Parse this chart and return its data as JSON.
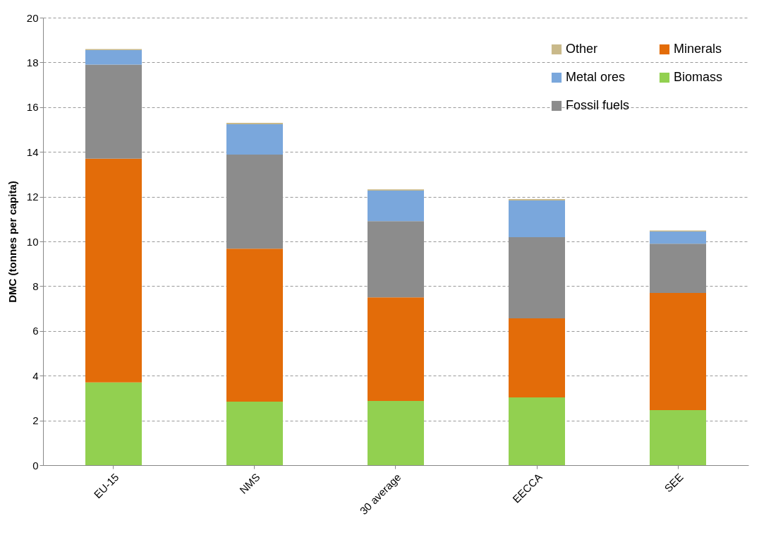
{
  "chart_data": {
    "type": "bar",
    "stacked": true,
    "ylabel": "DMC (tonnes per capita)",
    "categories": [
      "EU-15",
      "NMS",
      "30 average",
      "EECCA",
      "SEE"
    ],
    "series": [
      {
        "name": "Biomass",
        "color": "#92d050",
        "values": [
          3.7,
          2.84,
          2.87,
          3.03,
          2.46
        ]
      },
      {
        "name": "Minerals",
        "color": "#e36c09",
        "values": [
          10.0,
          6.84,
          4.63,
          3.53,
          5.24
        ]
      },
      {
        "name": "Fossil fuels",
        "color": "#8c8c8c",
        "values": [
          4.2,
          4.2,
          3.41,
          3.63,
          2.2
        ]
      },
      {
        "name": "Metal ores",
        "color": "#7aa7dc",
        "values": [
          0.65,
          1.36,
          1.36,
          1.64,
          0.54
        ]
      },
      {
        "name": "Other",
        "color": "#c9b98a",
        "values": [
          0.05,
          0.06,
          0.06,
          0.06,
          0.05
        ]
      }
    ],
    "ylim": [
      0,
      20
    ],
    "yticks": [
      0,
      2,
      4,
      6,
      8,
      10,
      12,
      14,
      16,
      18,
      20
    ],
    "grid": "y",
    "legend": "top right"
  }
}
